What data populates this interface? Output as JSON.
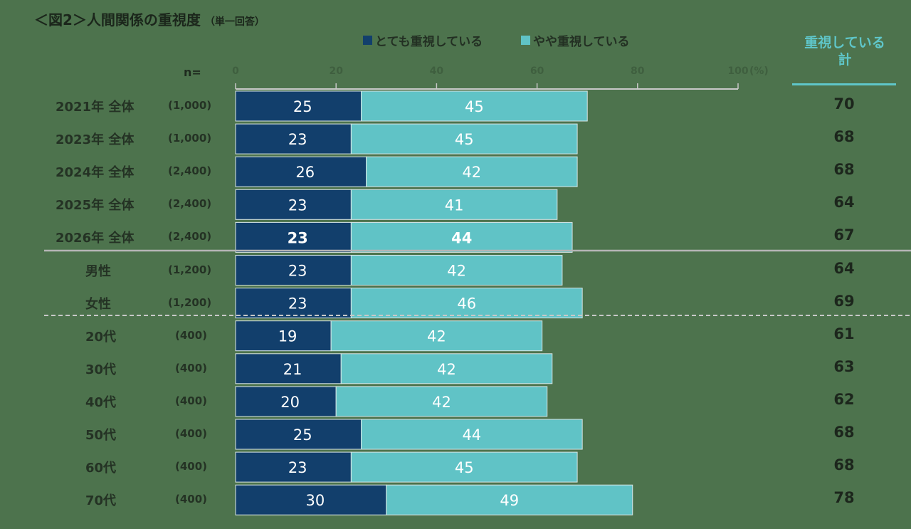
{
  "title": "＜図2＞人間関係の重視度",
  "title_note": "（単一回答）",
  "legend": {
    "very": "とても重視している",
    "somewhat": "やや重視している"
  },
  "total_header": [
    "重視している",
    "計"
  ],
  "n_label": "n=",
  "colors": {
    "very": "#123f6c",
    "somewhat": "#60c3c6",
    "background": "#4d734d",
    "total_header": "#5fc6c9"
  },
  "chart_data": {
    "type": "bar",
    "orientation": "horizontal",
    "stacked": true,
    "xlim": [
      0,
      100
    ],
    "x_ticks": [
      "0",
      "20",
      "40",
      "60",
      "80",
      "100"
    ],
    "x_unit": "(%)",
    "categories": [
      "2021年 全体",
      "2023年 全体",
      "2024年 全体",
      "2025年 全体",
      "2026年 全体",
      "男性",
      "女性",
      "20代",
      "30代",
      "40代",
      "50代",
      "60代",
      "70代"
    ],
    "sample_sizes": [
      "(1,000)",
      "(1,000)",
      "(2,400)",
      "(2,400)",
      "(2,400)",
      "(1,200)",
      "(1,200)",
      "(400)",
      "(400)",
      "(400)",
      "(400)",
      "(400)",
      "(400)"
    ],
    "series": [
      {
        "name": "とても重視している",
        "values": [
          25,
          23,
          26,
          23,
          23,
          23,
          23,
          19,
          21,
          20,
          25,
          23,
          30
        ]
      },
      {
        "name": "やや重視している",
        "values": [
          45,
          45,
          42,
          41,
          44,
          42,
          46,
          42,
          42,
          42,
          44,
          45,
          49
        ]
      }
    ],
    "totals": [
      70,
      68,
      68,
      64,
      67,
      64,
      69,
      61,
      63,
      62,
      68,
      68,
      78
    ],
    "highlight_row": 4
  }
}
